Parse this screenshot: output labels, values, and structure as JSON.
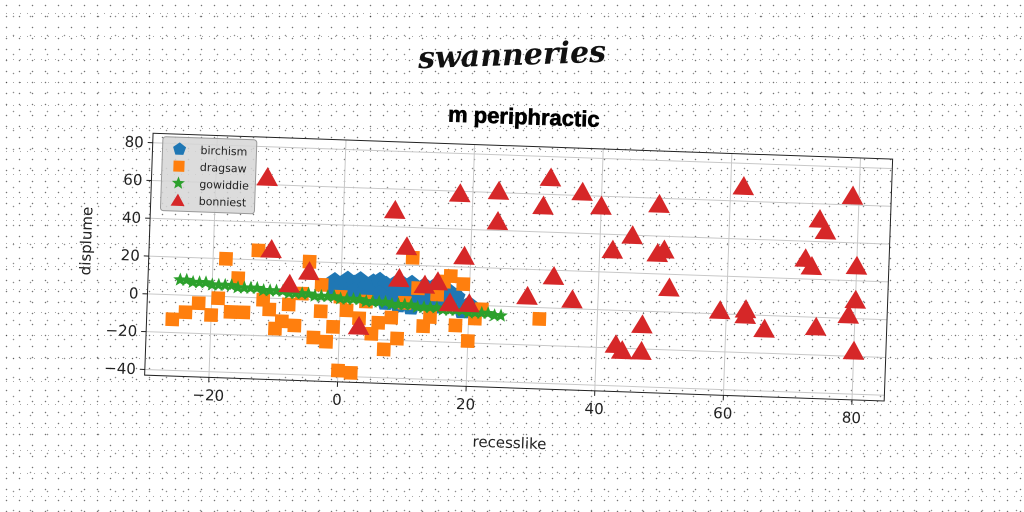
{
  "suptitle": "swanneries",
  "chart_data": {
    "type": "scatter",
    "title": "m periphractic",
    "xlabel": "recesslike",
    "ylabel": "displume",
    "xlim": [
      -30,
      85
    ],
    "ylim": [
      -43,
      85
    ],
    "xticks": [
      -20,
      0,
      20,
      40,
      60,
      80
    ],
    "yticks": [
      -40,
      -20,
      0,
      20,
      40,
      60,
      80
    ],
    "xtick_labels": [
      "−20",
      "0",
      "20",
      "40",
      "60",
      "80"
    ],
    "ytick_labels": [
      "−40",
      "−20",
      "0",
      "20",
      "40",
      "60",
      "80"
    ],
    "grid": true,
    "legend_position": "top-left",
    "series": [
      {
        "name": "birchism",
        "marker": "pentagon",
        "color": "#1f77b4",
        "points": [
          [
            -1,
            10
          ],
          [
            1,
            11
          ],
          [
            2,
            9
          ],
          [
            3,
            11
          ],
          [
            4,
            8
          ],
          [
            5,
            10
          ],
          [
            6,
            11
          ],
          [
            7,
            9
          ],
          [
            8,
            7
          ],
          [
            9,
            11
          ],
          [
            10,
            8
          ],
          [
            11,
            10
          ],
          [
            12,
            6
          ],
          [
            13,
            9
          ],
          [
            14,
            7
          ],
          [
            15,
            10
          ],
          [
            16,
            8
          ],
          [
            17,
            6
          ],
          [
            0,
            7
          ],
          [
            2,
            5
          ],
          [
            4,
            6
          ],
          [
            6,
            4
          ],
          [
            8,
            3
          ],
          [
            10,
            2
          ],
          [
            12,
            1
          ],
          [
            14,
            3
          ],
          [
            16,
            2
          ],
          [
            18,
            4
          ],
          [
            5,
            2
          ],
          [
            7,
            0
          ],
          [
            9,
            -1
          ],
          [
            11,
            -2
          ],
          [
            13,
            0
          ],
          [
            15,
            -1
          ],
          [
            17,
            1
          ],
          [
            19,
            -3
          ],
          [
            20,
            0
          ],
          [
            3,
            3
          ],
          [
            -1,
            5
          ]
        ]
      },
      {
        "name": "dragsaw",
        "marker": "square",
        "color": "#ff7f0e",
        "points": [
          [
            -26,
            -13
          ],
          [
            -24,
            -9
          ],
          [
            -22,
            -4
          ],
          [
            -20,
            -10
          ],
          [
            -19,
            -1
          ],
          [
            -18,
            20
          ],
          [
            -17,
            -8
          ],
          [
            -16,
            10
          ],
          [
            -15,
            -8
          ],
          [
            -13,
            25
          ],
          [
            -12,
            -1
          ],
          [
            -11,
            -6
          ],
          [
            -10,
            -16
          ],
          [
            -9,
            -12
          ],
          [
            -8,
            -3
          ],
          [
            -7,
            -14
          ],
          [
            -6,
            3
          ],
          [
            -5,
            20
          ],
          [
            -4,
            -20
          ],
          [
            -3,
            -6
          ],
          [
            -2,
            -22
          ],
          [
            -1,
            -14
          ],
          [
            0,
            -37
          ],
          [
            1,
            -5
          ],
          [
            2,
            -38
          ],
          [
            3,
            -9
          ],
          [
            4,
            0
          ],
          [
            5,
            -17
          ],
          [
            6,
            -11
          ],
          [
            7,
            -25
          ],
          [
            8,
            -8
          ],
          [
            9,
            -19
          ],
          [
            10,
            0
          ],
          [
            11,
            24
          ],
          [
            12,
            8
          ],
          [
            13,
            -12
          ],
          [
            14,
            -7
          ],
          [
            15,
            5
          ],
          [
            16,
            12
          ],
          [
            17,
            15
          ],
          [
            18,
            -11
          ],
          [
            19,
            11
          ],
          [
            20,
            -19
          ],
          [
            21,
            -7
          ],
          [
            22,
            -2
          ],
          [
            31,
            -6
          ],
          [
            0,
            2
          ],
          [
            -3,
            8
          ]
        ]
      },
      {
        "name": "gowiddie",
        "marker": "star",
        "color": "#2ca02c",
        "points": [
          [
            -25,
            8
          ],
          [
            -24,
            8
          ],
          [
            -23,
            7
          ],
          [
            -22,
            7
          ],
          [
            -21,
            7
          ],
          [
            -20,
            6
          ],
          [
            -19,
            6
          ],
          [
            -18,
            6
          ],
          [
            -17,
            6
          ],
          [
            -16,
            5
          ],
          [
            -15,
            5
          ],
          [
            -14,
            5
          ],
          [
            -13,
            5
          ],
          [
            -12,
            4
          ],
          [
            -11,
            4
          ],
          [
            -10,
            4
          ],
          [
            -9,
            4
          ],
          [
            -8,
            3
          ],
          [
            -7,
            3
          ],
          [
            -6,
            3
          ],
          [
            -5,
            3
          ],
          [
            -4,
            2
          ],
          [
            -3,
            2
          ],
          [
            -2,
            2
          ],
          [
            -1,
            2
          ],
          [
            0,
            1
          ],
          [
            1,
            1
          ],
          [
            2,
            1
          ],
          [
            3,
            1
          ],
          [
            4,
            0
          ],
          [
            5,
            0
          ],
          [
            6,
            0
          ],
          [
            7,
            0
          ],
          [
            8,
            -1
          ],
          [
            9,
            -1
          ],
          [
            10,
            -1
          ],
          [
            11,
            -1
          ],
          [
            12,
            -2
          ],
          [
            13,
            -2
          ],
          [
            14,
            -2
          ],
          [
            15,
            -2
          ],
          [
            16,
            -3
          ],
          [
            17,
            -3
          ],
          [
            18,
            -3
          ],
          [
            19,
            -3
          ],
          [
            20,
            -4
          ],
          [
            21,
            -4
          ],
          [
            22,
            -4
          ],
          [
            23,
            -4
          ],
          [
            24,
            -5
          ],
          [
            25,
            -5
          ]
        ]
      },
      {
        "name": "bonniest",
        "marker": "triangle",
        "color": "#d62728",
        "points": [
          [
            -12,
            64
          ],
          [
            -11,
            26
          ],
          [
            -8,
            8
          ],
          [
            -5,
            15
          ],
          [
            3,
            -13
          ],
          [
            8,
            49
          ],
          [
            9,
            13
          ],
          [
            10,
            30
          ],
          [
            13,
            10
          ],
          [
            15,
            12
          ],
          [
            17,
            1
          ],
          [
            18,
            59
          ],
          [
            19,
            26
          ],
          [
            20,
            1
          ],
          [
            24,
            61
          ],
          [
            24,
            45
          ],
          [
            29,
            6
          ],
          [
            31,
            54
          ],
          [
            32,
            69
          ],
          [
            33,
            17
          ],
          [
            36,
            5
          ],
          [
            37,
            62
          ],
          [
            40,
            55
          ],
          [
            42,
            32
          ],
          [
            43,
            -18
          ],
          [
            44,
            -21
          ],
          [
            45,
            40
          ],
          [
            47,
            -7
          ],
          [
            47,
            -21
          ],
          [
            49,
            57
          ],
          [
            49,
            31
          ],
          [
            50,
            33
          ],
          [
            51,
            13
          ],
          [
            59,
            2
          ],
          [
            62,
            68
          ],
          [
            63,
            3
          ],
          [
            63,
            0
          ],
          [
            66,
            -7
          ],
          [
            72,
            31
          ],
          [
            73,
            27
          ],
          [
            74,
            -5
          ],
          [
            74,
            52
          ],
          [
            75,
            46
          ],
          [
            79,
            2
          ],
          [
            79,
            65
          ],
          [
            80,
            28
          ],
          [
            80,
            10
          ],
          [
            80,
            -17
          ]
        ]
      }
    ]
  }
}
